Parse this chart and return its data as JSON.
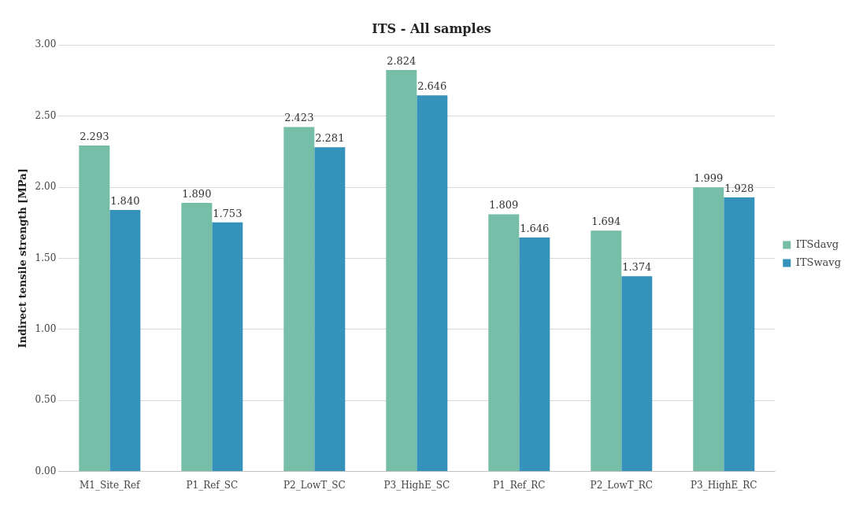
{
  "chart_data": {
    "type": "bar",
    "title": "ITS - All samples",
    "ylabel": "Indirect tensile strength [MPa]",
    "categories": [
      "M1_Site_Ref",
      "P1_Ref_SC",
      "P2_LowT_SC",
      "P3_HighE_SC",
      "P1_Ref_RC",
      "P2_LowT_RC",
      "P3_HighE_RC"
    ],
    "series": [
      {
        "name": "ITSdavg",
        "color": "#76bea8",
        "values": [
          2.293,
          1.89,
          2.423,
          2.824,
          1.809,
          1.694,
          1.999
        ],
        "value_labels": [
          "2.293",
          "1.890",
          "2.423",
          "2.824",
          "1.809",
          "1.694",
          "1.999"
        ]
      },
      {
        "name": "ITSwavg",
        "color": "#3592ba",
        "values": [
          1.84,
          1.753,
          2.281,
          2.646,
          1.646,
          1.374,
          1.928
        ],
        "value_labels": [
          "1.840",
          "1.753",
          "2.281",
          "2.646",
          "1.646",
          "1.374",
          "1.928"
        ]
      }
    ],
    "ylim": [
      0,
      3
    ],
    "yticks": [
      {
        "value": 0,
        "label": "0.00"
      },
      {
        "value": 0.5,
        "label": "0.50"
      },
      {
        "value": 1,
        "label": "1.00"
      },
      {
        "value": 1.5,
        "label": "1.50"
      },
      {
        "value": 2,
        "label": "2.00"
      },
      {
        "value": 2.5,
        "label": "2.50"
      },
      {
        "value": 3,
        "label": "3.00"
      }
    ],
    "grid": "y",
    "legend": "right"
  }
}
